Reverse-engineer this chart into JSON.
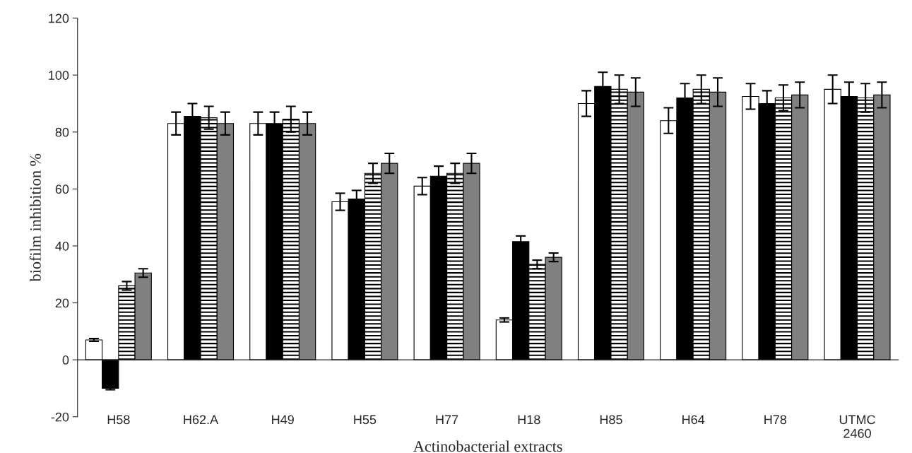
{
  "chart_data": {
    "type": "bar",
    "xlabel": "Actinobacterial extracts",
    "ylabel": "biofilm inhibition %",
    "categories": [
      "H58",
      "H62.A",
      "H49",
      "H55",
      "H77",
      "H18",
      "H85",
      "H64",
      "H78",
      "UTMC\n2460"
    ],
    "series": [
      {
        "color": "#ffffff",
        "values": [
          7,
          83,
          83,
          55.5,
          61,
          14,
          90,
          84,
          92.5,
          95
        ],
        "errors": [
          0.5,
          4,
          4,
          3,
          3,
          0.7,
          4.5,
          4.5,
          4.5,
          5
        ]
      },
      {
        "color": "#000000",
        "values": [
          -10,
          85.5,
          83,
          56.5,
          64.5,
          41.5,
          96,
          92,
          90,
          92.5
        ],
        "errors": [
          0.5,
          4.5,
          4,
          3,
          3.5,
          2,
          5,
          5,
          4.5,
          5
        ]
      },
      {
        "color": "#000000",
        "values": [
          26,
          85,
          84.5,
          65.5,
          65.5,
          33.5,
          95,
          95,
          92,
          92
        ],
        "errors": [
          1.5,
          4,
          4.5,
          3.5,
          3.5,
          1.5,
          5,
          5,
          4.5,
          5
        ]
      },
      {
        "color": "#808080",
        "values": [
          30.5,
          83,
          83,
          69,
          69,
          36,
          94,
          94,
          93,
          93
        ],
        "errors": [
          1.5,
          4,
          4,
          3.5,
          3.5,
          1.5,
          5,
          5,
          4.5,
          4.5
        ]
      }
    ],
    "ylim": [
      -20,
      120
    ],
    "yticks": [
      -20,
      0,
      20,
      40,
      60,
      80,
      100,
      120
    ],
    "legend": false
  }
}
